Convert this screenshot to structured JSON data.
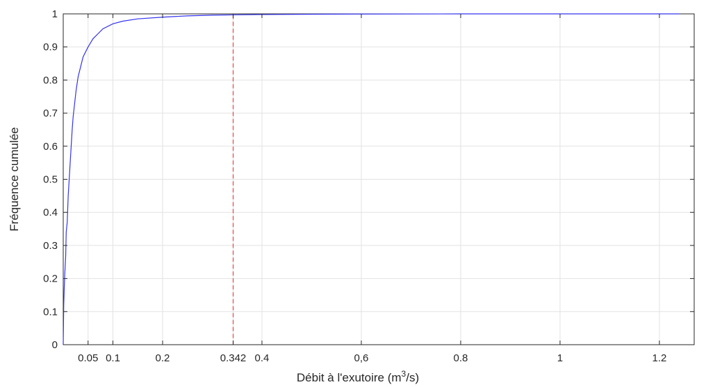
{
  "chart_data": {
    "type": "line",
    "xlabel": {
      "before": "Débit à l'exutoire (m",
      "sup": "3",
      "after": "/s)"
    },
    "ylabel": "Fréquence cumulée",
    "xlim": [
      0.0,
      1.27
    ],
    "ylim": [
      0,
      1
    ],
    "grid": true,
    "x_ticks": [
      {
        "value": 0.05,
        "label": "0.05"
      },
      {
        "value": 0.1,
        "label": "0.1"
      },
      {
        "value": 0.2,
        "label": "0.2"
      },
      {
        "value": 0.342,
        "label": "0.342"
      },
      {
        "value": 0.4,
        "label": "0.4"
      },
      {
        "value": 0.6,
        "label": "0,6"
      },
      {
        "value": 0.8,
        "label": "0.8"
      },
      {
        "value": 1.0,
        "label": "1"
      },
      {
        "value": 1.2,
        "label": "1.2"
      }
    ],
    "y_ticks": [
      {
        "value": 0,
        "label": "0"
      },
      {
        "value": 0.1,
        "label": "0.1"
      },
      {
        "value": 0.2,
        "label": "0.2"
      },
      {
        "value": 0.3,
        "label": "0.3"
      },
      {
        "value": 0.4,
        "label": "0.4"
      },
      {
        "value": 0.5,
        "label": "0.5"
      },
      {
        "value": 0.6,
        "label": "0.6"
      },
      {
        "value": 0.7,
        "label": "0.7"
      },
      {
        "value": 0.8,
        "label": "0.8"
      },
      {
        "value": 0.9,
        "label": "0.9"
      },
      {
        "value": 1,
        "label": "1"
      }
    ],
    "series": [
      {
        "color": "#3333ee",
        "points": [
          [
            0.0,
            0.0
          ],
          [
            0.001,
            0.12
          ],
          [
            0.002,
            0.17
          ],
          [
            0.003,
            0.21
          ],
          [
            0.004,
            0.24
          ],
          [
            0.005,
            0.27
          ],
          [
            0.006,
            0.34
          ],
          [
            0.008,
            0.37
          ],
          [
            0.01,
            0.45
          ],
          [
            0.012,
            0.5
          ],
          [
            0.014,
            0.55
          ],
          [
            0.016,
            0.6
          ],
          [
            0.018,
            0.65
          ],
          [
            0.02,
            0.69
          ],
          [
            0.023,
            0.73
          ],
          [
            0.026,
            0.77
          ],
          [
            0.03,
            0.81
          ],
          [
            0.035,
            0.84
          ],
          [
            0.04,
            0.87
          ],
          [
            0.05,
            0.9
          ],
          [
            0.06,
            0.925
          ],
          [
            0.07,
            0.94
          ],
          [
            0.08,
            0.955
          ],
          [
            0.1,
            0.97
          ],
          [
            0.12,
            0.978
          ],
          [
            0.15,
            0.985
          ],
          [
            0.2,
            0.99
          ],
          [
            0.25,
            0.994
          ],
          [
            0.3,
            0.996
          ],
          [
            0.342,
            0.997
          ],
          [
            0.4,
            0.998
          ],
          [
            0.5,
            0.999
          ],
          [
            0.6,
            0.9995
          ],
          [
            0.8,
            1.0
          ],
          [
            1.0,
            1.0
          ],
          [
            1.24,
            1.0
          ]
        ]
      }
    ],
    "reference_line": {
      "x": 0.342,
      "color": "#e84040",
      "style": "dashed"
    }
  }
}
